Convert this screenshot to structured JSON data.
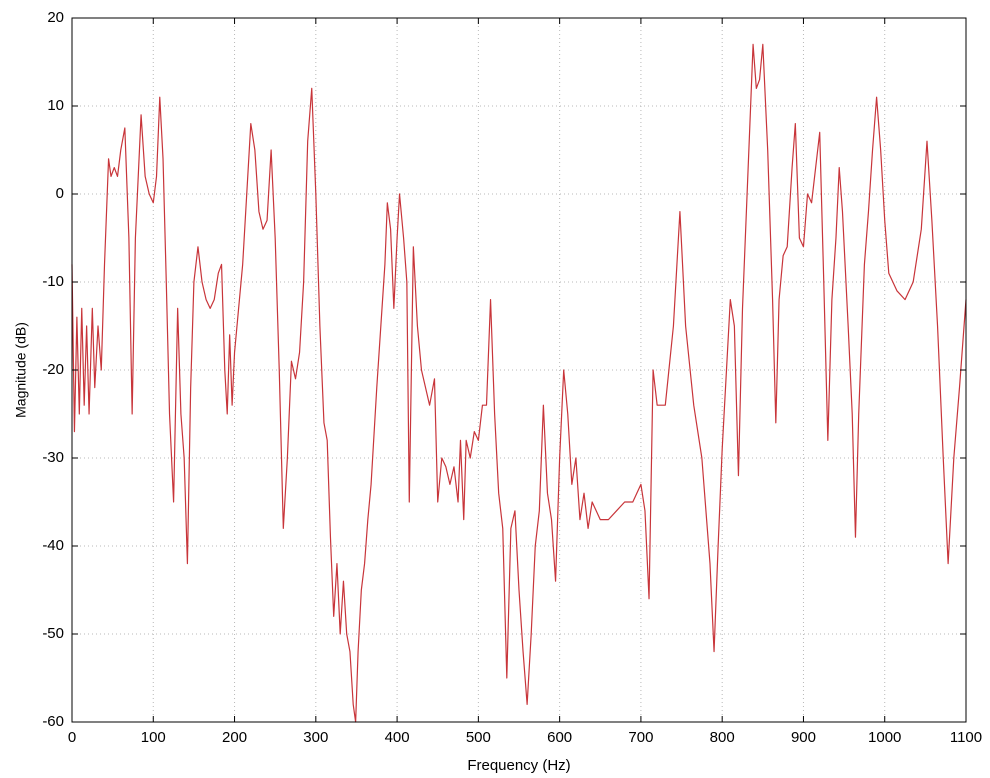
{
  "chart_data": {
    "type": "line",
    "x_label": "Frequency (Hz)",
    "y_label": "Magnitude (dB)",
    "x": [
      0,
      3,
      6,
      9,
      12,
      15,
      18,
      21,
      25,
      28,
      32,
      36,
      40,
      45,
      48,
      52,
      56,
      60,
      65,
      70,
      74,
      78,
      85,
      90,
      95,
      100,
      104,
      108,
      112,
      116,
      120,
      125,
      130,
      134,
      138,
      142,
      146,
      150,
      155,
      160,
      165,
      170,
      175,
      180,
      184,
      188,
      191,
      194,
      197,
      200,
      205,
      210,
      215,
      220,
      225,
      230,
      235,
      240,
      245,
      250,
      255,
      260,
      265,
      270,
      275,
      280,
      285,
      290,
      295,
      300,
      305,
      310,
      314,
      318,
      322,
      326,
      330,
      334,
      338,
      342,
      346,
      349,
      352,
      356,
      360,
      364,
      368,
      375,
      385,
      388,
      392,
      396,
      400,
      403,
      408,
      412,
      415,
      420,
      425,
      430,
      440,
      446,
      450,
      455,
      460,
      465,
      470,
      475,
      478,
      482,
      485,
      490,
      495,
      500,
      505,
      510,
      515,
      520,
      525,
      530,
      535,
      540,
      545,
      550,
      555,
      560,
      565,
      570,
      575,
      580,
      585,
      590,
      595,
      600,
      605,
      610,
      615,
      620,
      625,
      630,
      635,
      640,
      650,
      660,
      670,
      680,
      690,
      700,
      705,
      710,
      715,
      720,
      730,
      740,
      748,
      755,
      765,
      775,
      785,
      790,
      795,
      800,
      810,
      815,
      820,
      825,
      835,
      838,
      842,
      846,
      850,
      856,
      862,
      866,
      870,
      875,
      880,
      886,
      890,
      895,
      900,
      905,
      910,
      915,
      920,
      925,
      930,
      935,
      940,
      944,
      948,
      955,
      960,
      964,
      968,
      975,
      980,
      985,
      990,
      995,
      1000,
      1005,
      1015,
      1025,
      1035,
      1045,
      1052,
      1058,
      1065,
      1072,
      1078,
      1085,
      1092,
      1100
    ],
    "values": [
      -8,
      -27,
      -14,
      -25,
      -13,
      -24,
      -15,
      -25,
      -13,
      -22,
      -15,
      -20,
      -8,
      4,
      2,
      3,
      2,
      5,
      7.5,
      -5,
      -25,
      -5,
      9,
      2,
      0,
      -1,
      2,
      11,
      4,
      -10,
      -25,
      -35,
      -13,
      -25,
      -30,
      -42,
      -22,
      -10,
      -6,
      -10,
      -12,
      -13,
      -12,
      -9,
      -8,
      -20,
      -25,
      -16,
      -24,
      -18,
      -13,
      -8,
      0,
      8,
      5,
      -2,
      -4,
      -3,
      5,
      -5,
      -20,
      -38,
      -30,
      -19,
      -21,
      -18,
      -10,
      6,
      12,
      0,
      -15,
      -26,
      -28,
      -39,
      -48,
      -42,
      -50,
      -44,
      -50,
      -52,
      -58,
      -60,
      -52,
      -45,
      -42,
      -37,
      -33,
      -22,
      -8,
      -1,
      -4,
      -13,
      -5,
      0,
      -5,
      -10,
      -35,
      -6,
      -15,
      -20,
      -24,
      -21,
      -35,
      -30,
      -31,
      -33,
      -31,
      -35,
      -28,
      -37,
      -28,
      -30,
      -27,
      -28,
      -24,
      -24,
      -12,
      -25,
      -34,
      -38,
      -55,
      -38,
      -36,
      -45,
      -52,
      -58,
      -50,
      -40,
      -36,
      -24,
      -34,
      -37,
      -44,
      -30,
      -20,
      -25,
      -33,
      -30,
      -37,
      -34,
      -38,
      -35,
      -37,
      -37,
      -36,
      -35,
      -35,
      -33,
      -36,
      -46,
      -20,
      -24,
      -24,
      -15,
      -2,
      -15,
      -24,
      -30,
      -42,
      -52,
      -40,
      -29,
      -12,
      -15,
      -32,
      -13,
      10,
      17,
      12,
      13,
      17,
      5,
      -12,
      -26,
      -12,
      -7,
      -6,
      3,
      8,
      -5,
      -6,
      0,
      -1,
      3,
      7,
      -10,
      -28,
      -12,
      -5,
      3,
      -2,
      -15,
      -25,
      -39,
      -25,
      -8,
      -2,
      5,
      11,
      5,
      -3,
      -9,
      -11,
      -12,
      -10,
      -4,
      6,
      -3,
      -15,
      -30,
      -42,
      -30,
      -22,
      -12
    ],
    "color": "#c8353a",
    "xlim": [
      0,
      1100
    ],
    "xticks": [
      0,
      100,
      200,
      300,
      400,
      500,
      600,
      700,
      800,
      900,
      1000,
      1100
    ],
    "ylim": [
      -60,
      20
    ],
    "yticks": [
      -60,
      -50,
      -40,
      -30,
      -20,
      -10,
      0,
      10,
      20
    ],
    "grid": true
  }
}
